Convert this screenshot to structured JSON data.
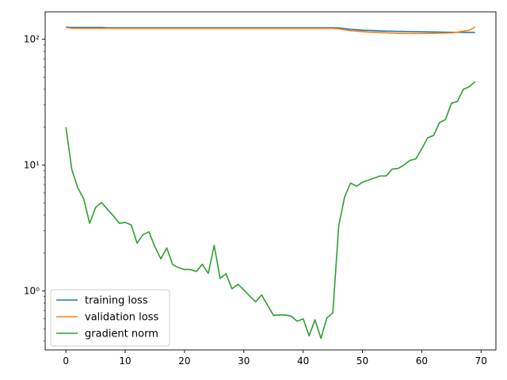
{
  "chart_data": {
    "type": "line",
    "title": "",
    "xlabel": "",
    "ylabel": "",
    "y_scale": "log",
    "xlim": [
      -3.5,
      72.5
    ],
    "ylim": [
      0.34,
      165
    ],
    "grid": false,
    "legend_position": "lower-left",
    "x_ticks": [
      0,
      10,
      20,
      30,
      40,
      50,
      60,
      70
    ],
    "x_tick_labels": [
      "0",
      "10",
      "20",
      "30",
      "40",
      "50",
      "60",
      "70"
    ],
    "y_major_ticks": [
      1,
      10,
      100
    ],
    "y_tick_labels": [
      "10⁰",
      "10¹",
      "10²"
    ],
    "x": [
      0,
      1,
      2,
      3,
      4,
      5,
      6,
      7,
      8,
      9,
      10,
      11,
      12,
      13,
      14,
      15,
      16,
      17,
      18,
      19,
      20,
      21,
      22,
      23,
      24,
      25,
      26,
      27,
      28,
      29,
      30,
      31,
      32,
      33,
      34,
      35,
      36,
      37,
      38,
      39,
      40,
      41,
      42,
      43,
      44,
      45,
      46,
      47,
      48,
      49,
      50,
      51,
      52,
      53,
      54,
      55,
      56,
      57,
      58,
      59,
      60,
      61,
      62,
      63,
      64,
      65,
      66,
      67,
      68,
      69
    ],
    "series": [
      {
        "name": "training loss",
        "color": "#1f77b4",
        "values": [
          125,
          124,
          124,
          124,
          124,
          124,
          124,
          123.5,
          123.5,
          123.5,
          123.5,
          123.5,
          123.5,
          123.5,
          123.5,
          123.5,
          123.5,
          123.5,
          123.5,
          123.5,
          123.5,
          123.5,
          123.5,
          123.5,
          123.5,
          123.5,
          123.5,
          123.5,
          123.5,
          123.5,
          123.5,
          123.5,
          123.5,
          123.5,
          123.5,
          123.5,
          123.5,
          123.5,
          123.5,
          123.5,
          123.5,
          123.5,
          123.5,
          123.5,
          123.5,
          123.5,
          123,
          121.5,
          120,
          119,
          118,
          117.5,
          117,
          116.5,
          116,
          115.8,
          115.5,
          115.3,
          115,
          114.8,
          114.6,
          114.4,
          114.2,
          114,
          113.8,
          113.6,
          113.5,
          113.4,
          113.3,
          113.2
        ]
      },
      {
        "name": "validation loss",
        "color": "#ff7f0e",
        "values": [
          124,
          122,
          122,
          122,
          122,
          122,
          122,
          122,
          122,
          122,
          122,
          122,
          122,
          122,
          122,
          122,
          122,
          122,
          122,
          122,
          122,
          122,
          122,
          122,
          122,
          122,
          122,
          122,
          122,
          122,
          122,
          122,
          122,
          122,
          122,
          122,
          122,
          122,
          122,
          122,
          122,
          122,
          122,
          122,
          122,
          122,
          121,
          119,
          117,
          116,
          115,
          114,
          113.5,
          113,
          112.5,
          112,
          111.5,
          111.2,
          111,
          111,
          111,
          111.2,
          111.5,
          111.8,
          112,
          112.5,
          114,
          116,
          118,
          125
        ]
      },
      {
        "name": "gradient norm",
        "color": "#2ca02c",
        "values": [
          20,
          9.2,
          6.6,
          5.4,
          3.45,
          4.6,
          5.05,
          4.45,
          3.95,
          3.45,
          3.5,
          3.35,
          2.4,
          2.8,
          2.95,
          2.25,
          1.8,
          2.2,
          1.62,
          1.53,
          1.48,
          1.48,
          1.43,
          1.63,
          1.38,
          2.3,
          1.26,
          1.37,
          1.04,
          1.13,
          1.02,
          0.91,
          0.82,
          0.93,
          0.77,
          0.64,
          0.645,
          0.645,
          0.63,
          0.575,
          0.6,
          0.44,
          0.59,
          0.42,
          0.61,
          0.67,
          3.3,
          5.6,
          7.2,
          6.8,
          7.3,
          7.6,
          7.9,
          8.2,
          8.2,
          9.3,
          9.4,
          10,
          10.9,
          11.2,
          13.5,
          16.5,
          17.2,
          21.8,
          23,
          31,
          32,
          40,
          42,
          46
        ]
      }
    ]
  }
}
